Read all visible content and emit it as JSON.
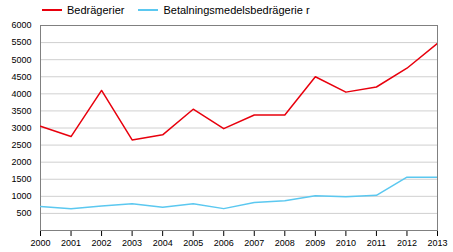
{
  "chart_data": {
    "type": "line",
    "x": [
      2000,
      2001,
      2002,
      2003,
      2004,
      2005,
      2006,
      2007,
      2008,
      2009,
      2010,
      2011,
      2012,
      2013
    ],
    "series": [
      {
        "name": "Bedrägerier",
        "color": "#e8000d",
        "values": [
          3050,
          2750,
          4100,
          2650,
          2800,
          3550,
          2980,
          3380,
          3380,
          4500,
          4050,
          4200,
          4750,
          5480
        ]
      },
      {
        "name": "Betalningsmedelsbedrägerie r",
        "color": "#5bc8f0",
        "values": [
          700,
          640,
          720,
          780,
          680,
          780,
          640,
          820,
          870,
          1020,
          990,
          1030,
          1560,
          1560
        ]
      }
    ],
    "xlim": [
      2000,
      2013
    ],
    "xticks": [
      2000,
      2001,
      2002,
      2003,
      2004,
      2005,
      2006,
      2007,
      2008,
      2009,
      2010,
      2011,
      2012,
      2013
    ],
    "ylim": [
      0,
      6000
    ],
    "yticks": [
      500,
      1000,
      1500,
      2000,
      2500,
      3000,
      3500,
      4000,
      4500,
      5000,
      5500,
      6000
    ],
    "grid": true,
    "legend": "upper left"
  }
}
